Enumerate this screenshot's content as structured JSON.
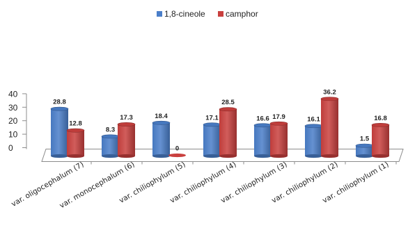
{
  "chart_data": {
    "type": "bar",
    "categories": [
      "var. oligocephalum (7)",
      "var. monocephalum (6)",
      "var. chiliophylum (5)",
      "var. chiliophylum (4)",
      "var. chiliophylum (3)",
      "var. chiliophylum (2)",
      "var. chiliophylum (1)"
    ],
    "series": [
      {
        "name": "1,8-cineole",
        "color": "#4a7ec9",
        "values": [
          28.8,
          8.3,
          18.4,
          17.1,
          16.6,
          16.1,
          1.5
        ],
        "labels": [
          "28.8",
          "8.3",
          "18.4",
          "17.1",
          "16.6",
          "16.1",
          "1.5"
        ]
      },
      {
        "name": "camphor",
        "color": "#c9403e",
        "values": [
          12.8,
          17.3,
          0,
          28.5,
          17.9,
          36.2,
          16.8
        ],
        "labels": [
          "12.8",
          "17.3",
          "0",
          "28.5",
          "17.9",
          "36.2",
          "16.8"
        ]
      }
    ],
    "yticks": [
      0,
      10,
      20,
      30,
      40
    ],
    "ylim": [
      0,
      40
    ],
    "xlabel": "",
    "ylabel": "",
    "legend_position": "top",
    "grid": false,
    "style": "3d-clustered-bar"
  }
}
